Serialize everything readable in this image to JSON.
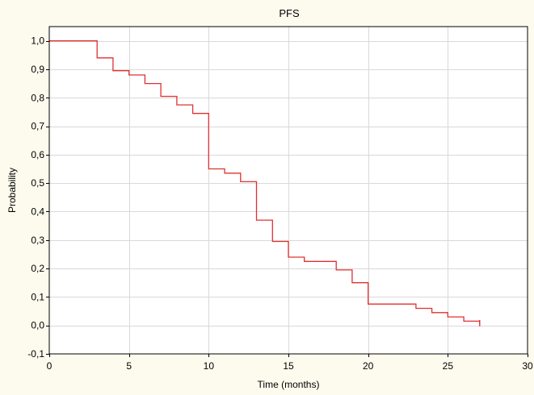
{
  "chart_data": {
    "type": "line",
    "title": "PFS",
    "xlabel": "Time (months)",
    "ylabel": "Probability",
    "xlim": [
      0,
      30
    ],
    "ylim": [
      -0.1,
      1.05
    ],
    "grid": true,
    "x_ticks": [
      0,
      5,
      10,
      15,
      20,
      25,
      30
    ],
    "x_tick_labels": [
      "0",
      "5",
      "10",
      "15",
      "20",
      "25",
      "30"
    ],
    "y_ticks": [
      -0.1,
      0.0,
      0.1,
      0.2,
      0.3,
      0.4,
      0.5,
      0.6,
      0.7,
      0.8,
      0.9,
      1.0
    ],
    "y_tick_labels": [
      "-0,1",
      "0,0",
      "0,1",
      "0,2",
      "0,3",
      "0,4",
      "0,5",
      "0,6",
      "0,7",
      "0,8",
      "0,9",
      "1,0"
    ],
    "series": [
      {
        "line_style": "step",
        "color": "#e03030",
        "x": [
          0,
          3,
          4,
          5,
          6,
          7,
          8,
          9,
          10,
          11,
          12,
          13,
          14,
          15,
          16,
          18,
          19,
          20,
          23,
          24,
          25,
          26,
          27
        ],
        "y": [
          1.0,
          0.94,
          0.895,
          0.88,
          0.85,
          0.805,
          0.775,
          0.745,
          0.55,
          0.535,
          0.505,
          0.37,
          0.295,
          0.24,
          0.225,
          0.195,
          0.15,
          0.075,
          0.06,
          0.045,
          0.03,
          0.015,
          0.005
        ]
      }
    ],
    "colors": {
      "background": "#fdfbee",
      "plot_area": "#ffffff",
      "grid": "#d9d9d9",
      "axis": "#000000"
    }
  }
}
